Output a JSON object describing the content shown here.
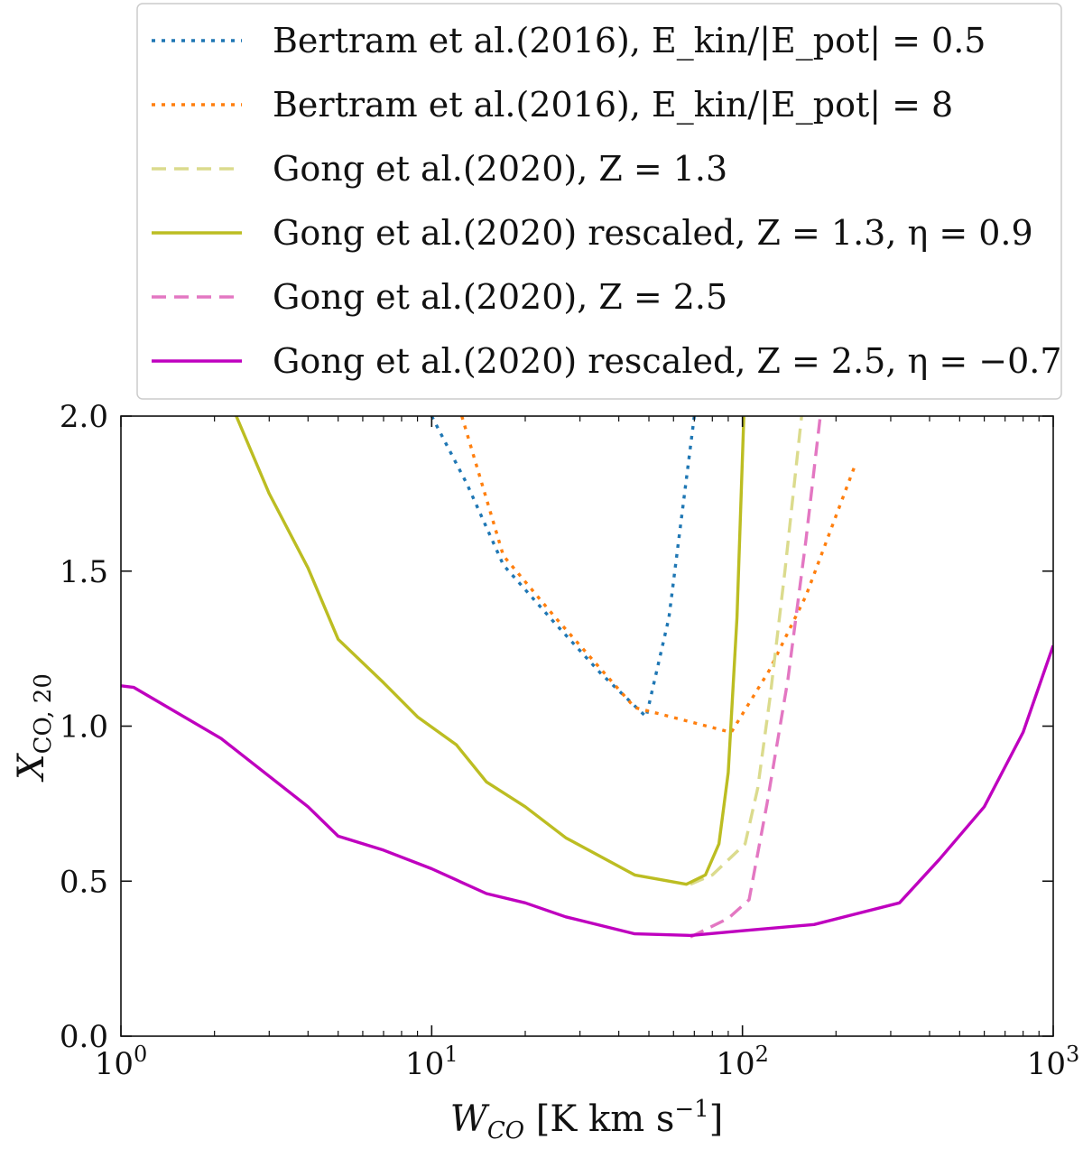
{
  "chart_data": {
    "type": "line",
    "xscale": "log",
    "xlim": [
      1,
      1000
    ],
    "ylim": [
      0.0,
      2.0
    ],
    "grid": false,
    "legend_position": "top (above plot)",
    "xlabel": "W_CO [K km s^-1]",
    "ylabel": "X_CO,20",
    "x_tick_labels": [
      "10^0",
      "10^1",
      "10^2",
      "10^3"
    ],
    "y_tick_labels": [
      "0.0",
      "0.5",
      "1.0",
      "1.5",
      "2.0"
    ],
    "series": [
      {
        "name": "Bertram et al.(2016), E_kin/|E_pot| = 0.5",
        "color": "#1f77b4",
        "style": "dotted",
        "points": [
          [
            10,
            2.0
          ],
          [
            13,
            1.78
          ],
          [
            17,
            1.52
          ],
          [
            25,
            1.33
          ],
          [
            35,
            1.17
          ],
          [
            49,
            1.03
          ],
          [
            58,
            1.35
          ],
          [
            70,
            2.0
          ]
        ]
      },
      {
        "name": "Bertram et al.(2016), E_kin/|E_pot| = 8",
        "color": "#ff7f0e",
        "style": "dotted",
        "points": [
          [
            12.5,
            2.0
          ],
          [
            17,
            1.55
          ],
          [
            25,
            1.35
          ],
          [
            45,
            1.06
          ],
          [
            92,
            0.98
          ],
          [
            122,
            1.18
          ],
          [
            160,
            1.42
          ],
          [
            230,
            1.84
          ]
        ]
      },
      {
        "name": "Gong et al.(2020), Z = 1.3",
        "color": "#dbdb8d",
        "style": "dashed",
        "points": [
          [
            68,
            0.49
          ],
          [
            80,
            0.52
          ],
          [
            102,
            0.62
          ],
          [
            112,
            0.8
          ],
          [
            123,
            1.1
          ],
          [
            137,
            1.5
          ],
          [
            155,
            2.0
          ]
        ]
      },
      {
        "name": "Gong et al.(2020) rescaled, Z = 1.3, η = 0.9",
        "color": "#bcbd22",
        "style": "solid",
        "points": [
          [
            2.35,
            2.0
          ],
          [
            3,
            1.75
          ],
          [
            4,
            1.51
          ],
          [
            5,
            1.28
          ],
          [
            7,
            1.14
          ],
          [
            9,
            1.03
          ],
          [
            12,
            0.94
          ],
          [
            15,
            0.82
          ],
          [
            20,
            0.74
          ],
          [
            27,
            0.64
          ],
          [
            45,
            0.52
          ],
          [
            66,
            0.49
          ],
          [
            76,
            0.52
          ],
          [
            84,
            0.62
          ],
          [
            90,
            0.85
          ],
          [
            96,
            1.35
          ],
          [
            101,
            2.0
          ]
        ]
      },
      {
        "name": "Gong et al.(2020), Z = 2.5",
        "color": "#e377c2",
        "style": "dashed",
        "points": [
          [
            68,
            0.32
          ],
          [
            90,
            0.38
          ],
          [
            105,
            0.44
          ],
          [
            120,
            0.75
          ],
          [
            140,
            1.15
          ],
          [
            160,
            1.6
          ],
          [
            178,
            2.0
          ]
        ]
      },
      {
        "name": "Gong et al.(2020) rescaled, Z = 2.5, η = −0.7",
        "color": "#bf00bf",
        "style": "solid",
        "points": [
          [
            1.0,
            1.13
          ],
          [
            1.1,
            1.125
          ],
          [
            2.1,
            0.96
          ],
          [
            4,
            0.74
          ],
          [
            5,
            0.645
          ],
          [
            7,
            0.6
          ],
          [
            10,
            0.54
          ],
          [
            15,
            0.46
          ],
          [
            20,
            0.43
          ],
          [
            27,
            0.385
          ],
          [
            45,
            0.33
          ],
          [
            68,
            0.325
          ],
          [
            100,
            0.34
          ],
          [
            170,
            0.36
          ],
          [
            320,
            0.43
          ],
          [
            430,
            0.57
          ],
          [
            600,
            0.74
          ],
          [
            800,
            0.98
          ],
          [
            1000,
            1.26
          ]
        ]
      }
    ]
  }
}
